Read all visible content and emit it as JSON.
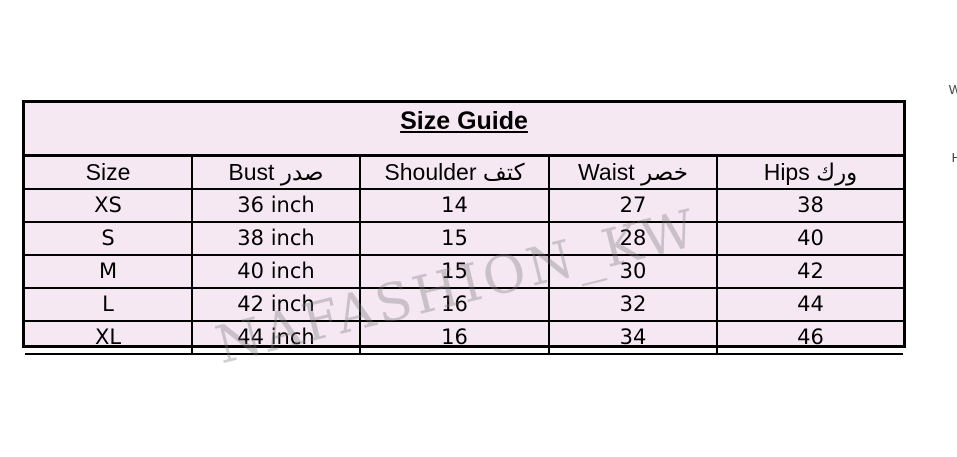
{
  "title": "Size Guide",
  "headers": [
    "Size",
    "Bust صدر",
    "Shoulder كتف",
    "Waist خصر",
    "Hips ورك"
  ],
  "rows": [
    [
      "XS",
      "36 inch",
      "14",
      "27",
      "38"
    ],
    [
      "S",
      "38 inch",
      "15",
      "28",
      "40"
    ],
    [
      "M",
      "40 inch",
      "15",
      "30",
      "42"
    ],
    [
      "L",
      "42 inch",
      "16",
      "32",
      "44"
    ],
    [
      "XL",
      "44 inch",
      "16",
      "34",
      "46"
    ]
  ],
  "watermark": "NAFASHION_KW",
  "edge_fragments": [
    "W",
    "H"
  ],
  "colors": {
    "table_background": "#f6e8f3",
    "border": "#000000"
  }
}
